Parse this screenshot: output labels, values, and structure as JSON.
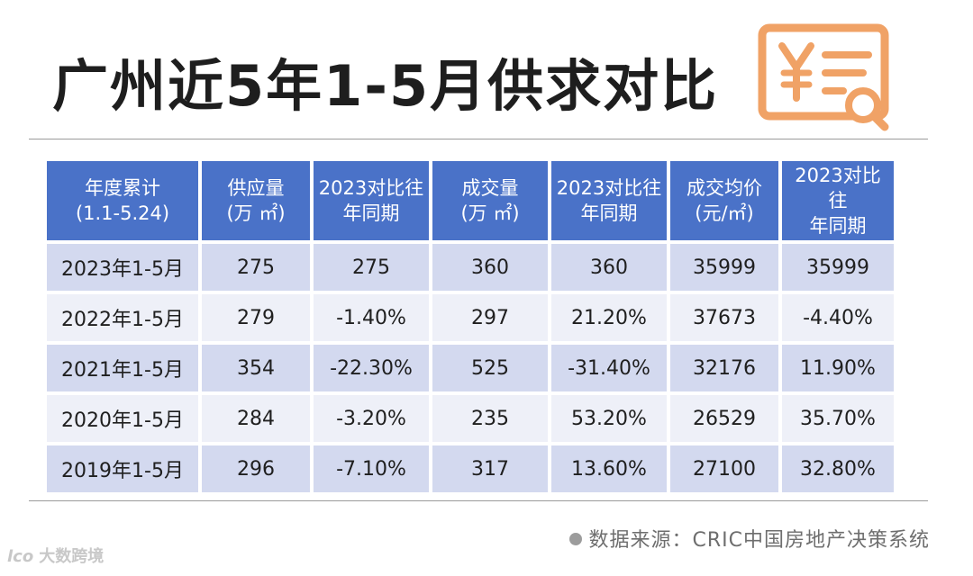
{
  "title": "广州近5年1-5月供求对比",
  "header_icon": "receipt-yen-magnifier-icon",
  "accent_color": "#f0a266",
  "header_color": "#4a72c8",
  "table": {
    "headers": [
      {
        "l1": "年度累计",
        "l2": "(1.1-5.24)"
      },
      {
        "l1": "供应量",
        "l2": "(万 ㎡)"
      },
      {
        "l1": "2023对比往",
        "l2": "年同期"
      },
      {
        "l1": "成交量",
        "l2": "(万 ㎡)"
      },
      {
        "l1": "2023对比往",
        "l2": "年同期"
      },
      {
        "l1": "成交均价",
        "l2": "(元/㎡)"
      },
      {
        "l1": "2023对比往",
        "l2": "年同期"
      }
    ],
    "rows": [
      [
        "2023年1-5月",
        "275",
        "275",
        "360",
        "360",
        "35999",
        "35999"
      ],
      [
        "2022年1-5月",
        "279",
        "-1.40%",
        "297",
        "21.20%",
        "37673",
        "-4.40%"
      ],
      [
        "2021年1-5月",
        "354",
        "-22.30%",
        "525",
        "-31.40%",
        "32176",
        "11.90%"
      ],
      [
        "2020年1-5月",
        "284",
        "-3.20%",
        "235",
        "53.20%",
        "26529",
        "35.70%"
      ],
      [
        "2019年1-5月",
        "296",
        "-7.10%",
        "317",
        "13.60%",
        "27100",
        "32.80%"
      ]
    ]
  },
  "source": "数据来源：CRIC中国房地产决策系统",
  "brand": {
    "logo": "lco",
    "text": "大数跨境"
  }
}
